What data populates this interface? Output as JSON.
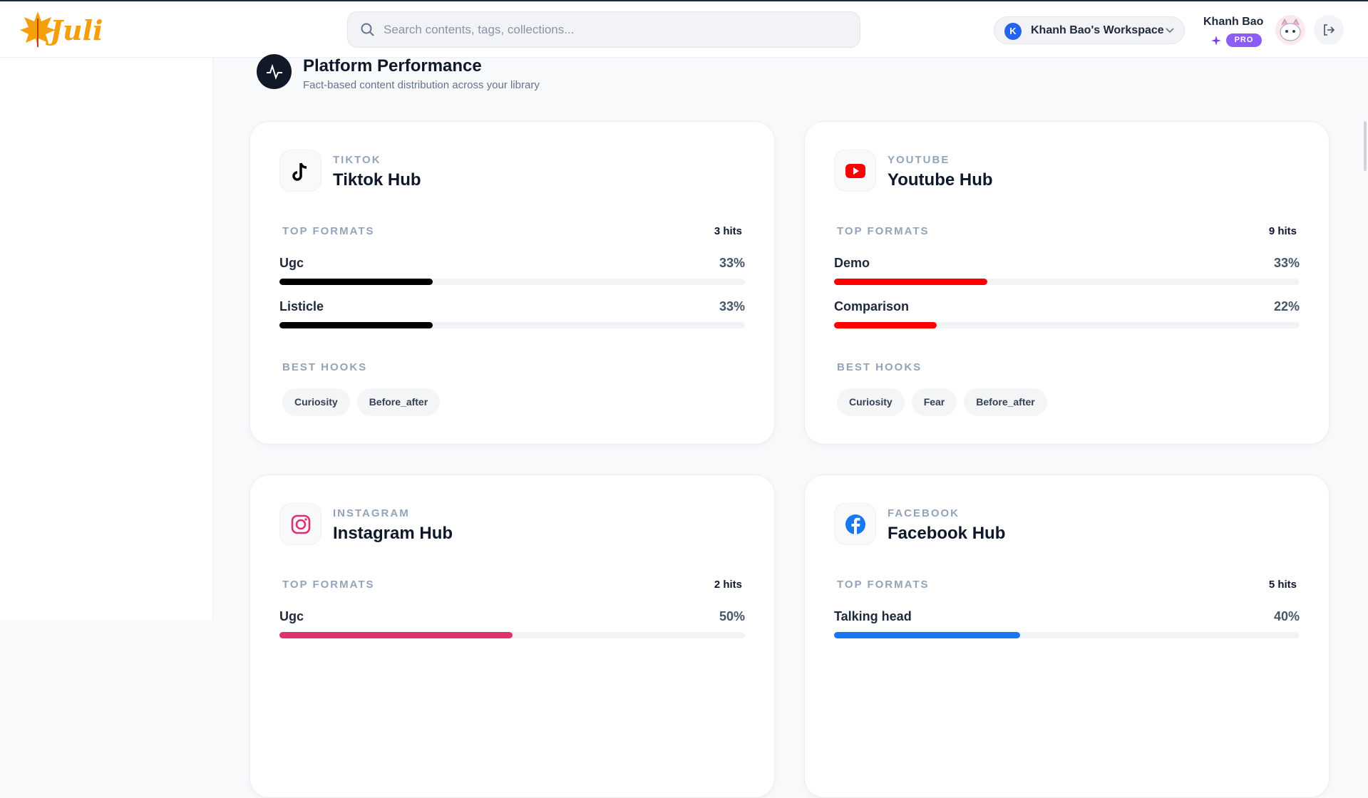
{
  "header": {
    "logo": "Juli",
    "search_placeholder": "Search contents, tags, collections...",
    "workspace_initial": "K",
    "workspace": "Khanh Bao's Workspace",
    "user_name": "Khanh Bao",
    "badge": "PRO"
  },
  "section": {
    "title": "Platform Performance",
    "subtitle": "Fact-based content distribution across your library"
  },
  "platforms": [
    {
      "platform": "TIKTOK",
      "title": "Tiktok Hub",
      "color": "#000000",
      "formats_label": "TOP FORMATS",
      "hits": "3 hits",
      "formats": [
        {
          "name": "Ugc",
          "share": {
            "value": 33,
            "label": "33%"
          }
        },
        {
          "name": "Listicle",
          "share": {
            "value": 33,
            "label": "33%"
          }
        }
      ],
      "hooks_label": "BEST HOOKS",
      "hooks": [
        "Curiosity",
        "Before_after"
      ]
    },
    {
      "platform": "YOUTUBE",
      "title": "Youtube Hub",
      "color": "#ff0000",
      "formats_label": "TOP FORMATS",
      "hits": "9 hits",
      "formats": [
        {
          "name": "Demo",
          "share": {
            "value": 33,
            "label": "33%"
          }
        },
        {
          "name": "Comparison",
          "share": {
            "value": 22,
            "label": "22%"
          }
        }
      ],
      "hooks_label": "BEST HOOKS",
      "hooks": [
        "Curiosity",
        "Fear",
        "Before_after"
      ]
    },
    {
      "platform": "INSTAGRAM",
      "title": "Instagram Hub",
      "color": "#e1306c",
      "formats_label": "TOP FORMATS",
      "hits": "2 hits",
      "formats": [
        {
          "name": "Ugc",
          "share": {
            "value": 50,
            "label": "50%"
          }
        }
      ]
    },
    {
      "platform": "FACEBOOK",
      "title": "Facebook Hub",
      "color": "#1877f2",
      "formats_label": "TOP FORMATS",
      "hits": "5 hits",
      "formats": [
        {
          "name": "Talking head",
          "share": {
            "value": 40,
            "label": "40%"
          }
        }
      ]
    }
  ]
}
